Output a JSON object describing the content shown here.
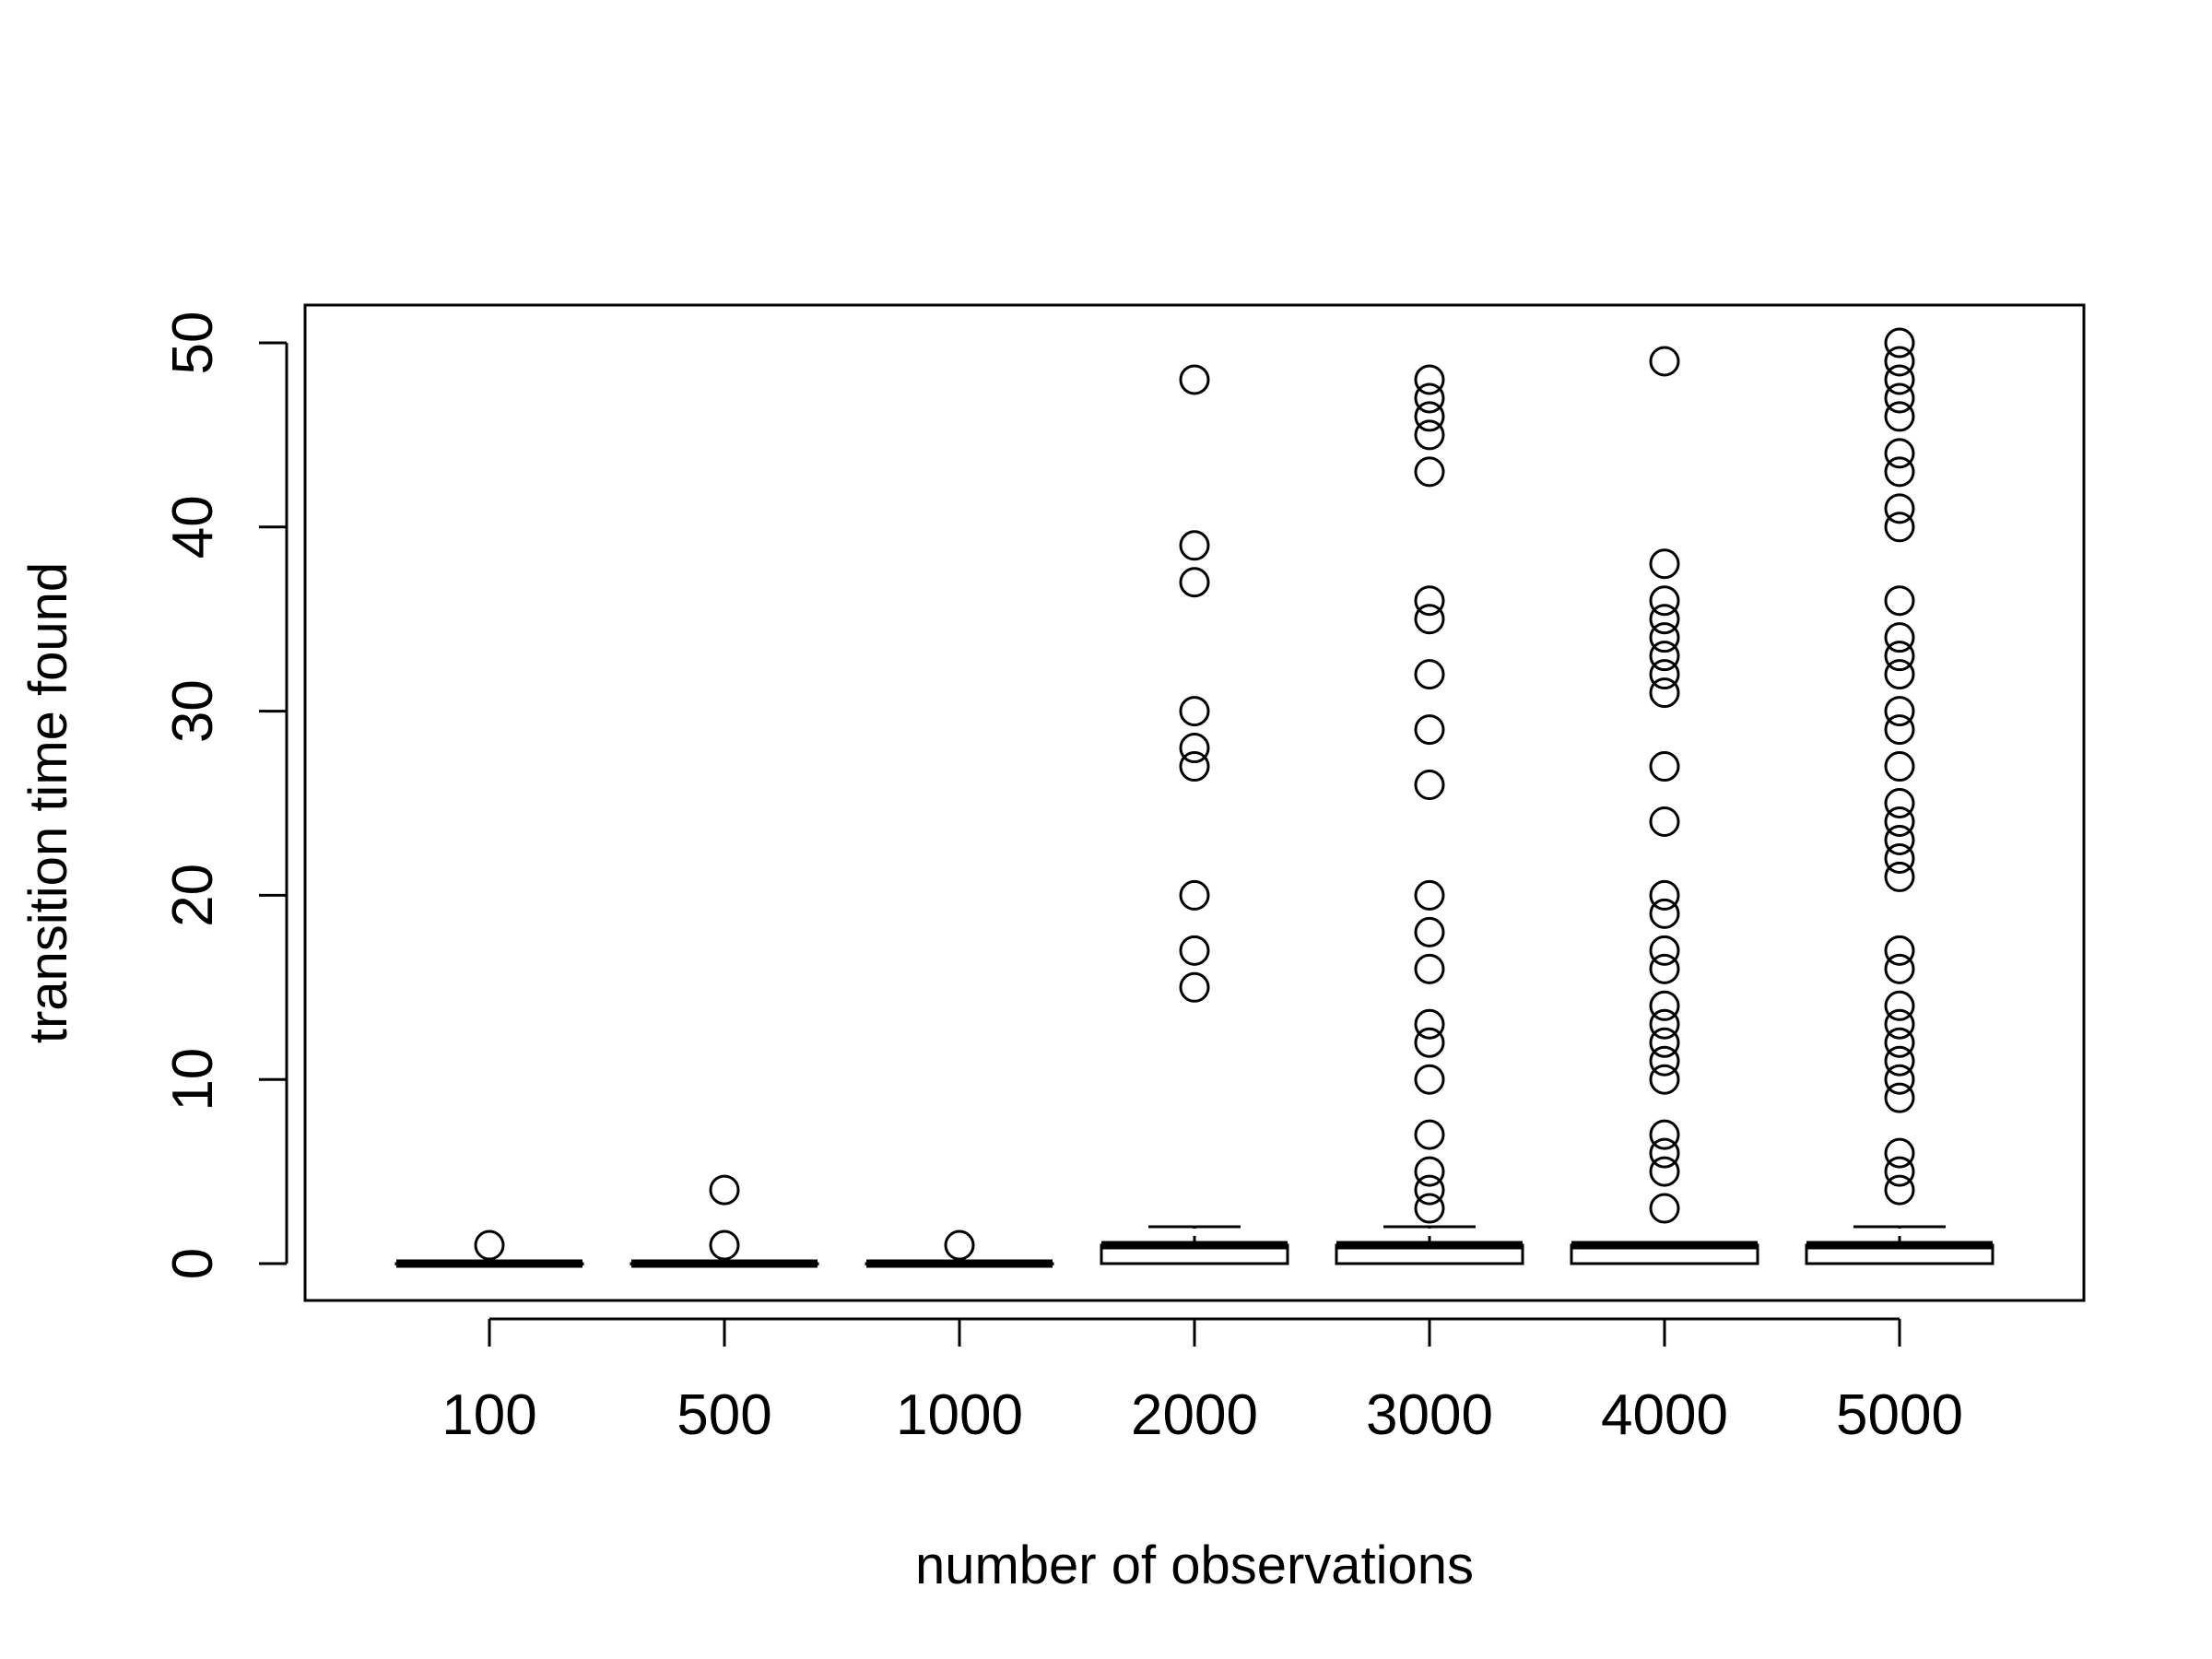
{
  "chart_data": {
    "type": "boxplot",
    "title": "",
    "xlabel": "number of observations",
    "ylabel": "transition time found",
    "ylim": [
      -2,
      52
    ],
    "yticks": [
      0,
      10,
      20,
      30,
      40,
      50
    ],
    "grid": false,
    "legend": "none",
    "categories": [
      "100",
      "500",
      "1000",
      "2000",
      "3000",
      "4000",
      "5000"
    ],
    "boxes": [
      {
        "category": "100",
        "min": 0,
        "q1": 0,
        "median": 0,
        "q3": 0,
        "max": 0,
        "outliers": [
          1
        ]
      },
      {
        "category": "500",
        "min": 0,
        "q1": 0,
        "median": 0,
        "q3": 0,
        "max": 0,
        "outliers": [
          1,
          4
        ]
      },
      {
        "category": "1000",
        "min": 0,
        "q1": 0,
        "median": 0,
        "q3": 0,
        "max": 0,
        "outliers": [
          1
        ]
      },
      {
        "category": "2000",
        "min": 0,
        "q1": 0,
        "median": 1,
        "q3": 1,
        "max": 2,
        "outliers": [
          15,
          17,
          20,
          27,
          28,
          30,
          37,
          39,
          48
        ]
      },
      {
        "category": "3000",
        "min": 0,
        "q1": 0,
        "median": 1,
        "q3": 1,
        "max": 2,
        "outliers": [
          3,
          4,
          5,
          7,
          10,
          12,
          13,
          16,
          18,
          20,
          26,
          29,
          32,
          35,
          36,
          43,
          45,
          46,
          47,
          48
        ]
      },
      {
        "category": "4000",
        "min": 0,
        "q1": 0,
        "median": 1,
        "q3": 1,
        "max": 1,
        "outliers": [
          3,
          5,
          6,
          7,
          10,
          11,
          12,
          13,
          14,
          16,
          17,
          19,
          20,
          24,
          27,
          31,
          32,
          33,
          34,
          35,
          36,
          38,
          49
        ]
      },
      {
        "category": "5000",
        "min": 0,
        "q1": 0,
        "median": 1,
        "q3": 1,
        "max": 2,
        "outliers": [
          4,
          5,
          6,
          9,
          10,
          11,
          12,
          13,
          14,
          16,
          17,
          21,
          22,
          23,
          24,
          25,
          27,
          29,
          30,
          32,
          33,
          34,
          36,
          40,
          41,
          43,
          44,
          46,
          47,
          48,
          49,
          50
        ]
      }
    ]
  }
}
